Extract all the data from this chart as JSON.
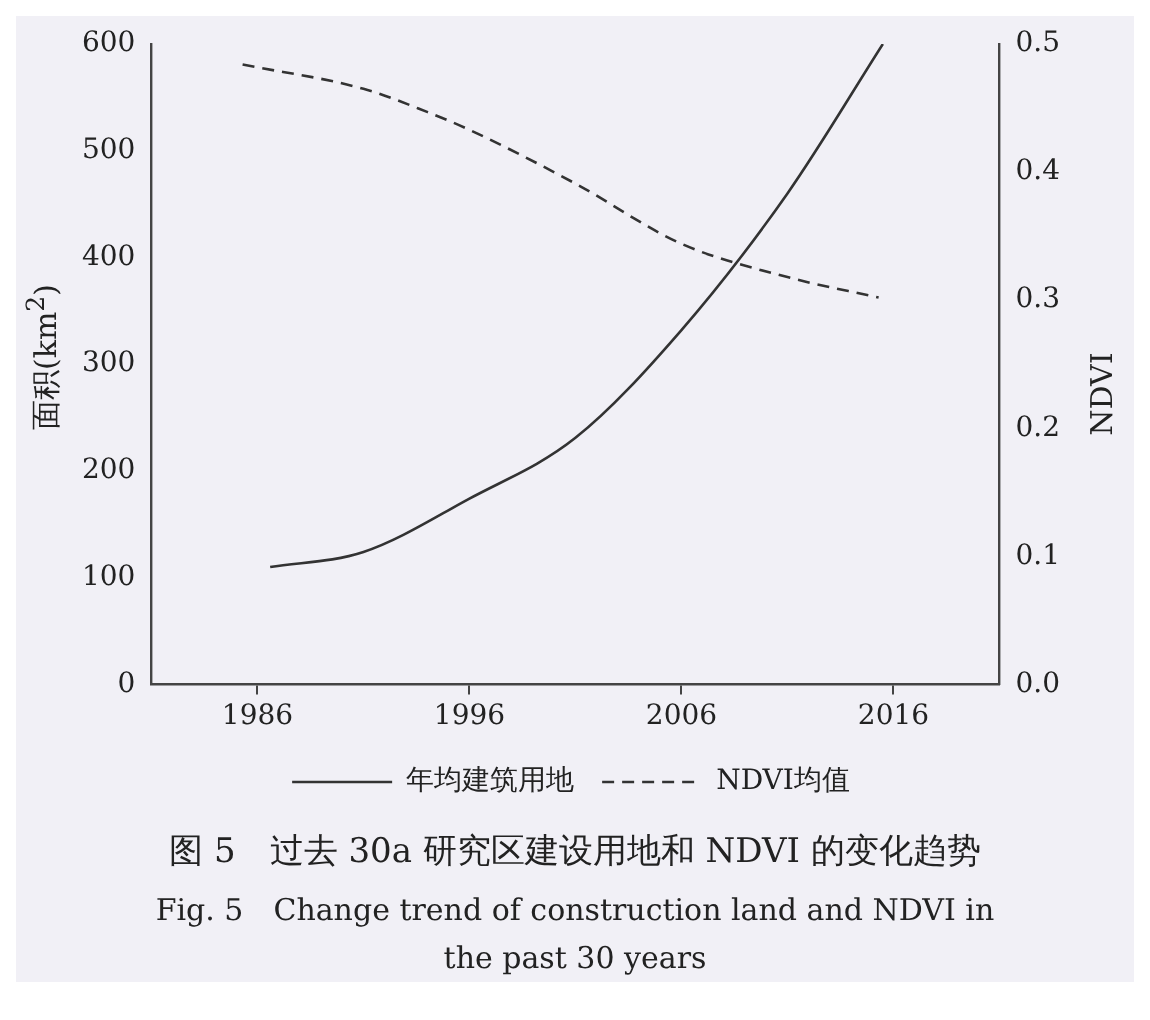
{
  "chart_data": {
    "type": "line",
    "title": "图 5　过去 30a 研究区建设用地和 NDVI 的变化趋势",
    "subtitle": "Fig. 5　Change trend of construction land and NDVI in the past 30 years",
    "ylabel": "面积(km$^{2}$)",
    "y2label": "NDVI",
    "xlim": [
      1981,
      2021
    ],
    "xticks": [
      1986,
      1996,
      2006,
      2016
    ],
    "ylim": [
      0,
      600
    ],
    "yticks": [
      0,
      100,
      200,
      300,
      400,
      500,
      600
    ],
    "y2lim": [
      0,
      0.5
    ],
    "y2ticks": [
      {
        "value": 0,
        "label": "0.0"
      },
      0.1,
      0.2,
      0.3,
      0.4,
      0.5
    ],
    "grid": false,
    "legend": "bottom",
    "marker": "none",
    "series": [
      {
        "name": "年均建筑用地",
        "color": "#333333",
        "line_style": "solid",
        "x": [
          1986.6,
          1991,
          1996,
          2001,
          2006,
          2011,
          2015.5
        ],
        "values": [
          110,
          124,
          174,
          231,
          332,
          460,
          600
        ]
      },
      {
        "name": "NDVI均值",
        "color": "#333333",
        "line_style": "dashed",
        "axis": "y2",
        "x": [
          1985.3,
          1991,
          1994,
          1996,
          2001,
          2006,
          2011,
          2015.3
        ],
        "values": [
          0.484,
          0.465,
          0.447,
          0.433,
          0.391,
          0.344,
          0.318,
          0.302
        ]
      }
    ]
  }
}
